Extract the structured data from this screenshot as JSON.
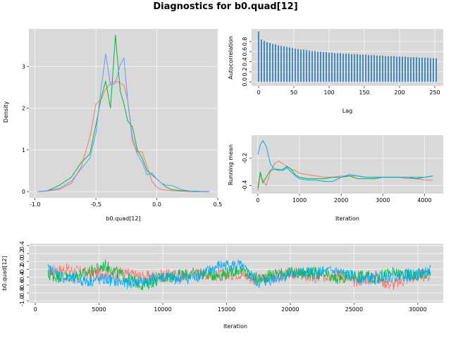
{
  "title": "Diagnostics for b0.quad[12]",
  "colors": {
    "chain1": "#F8766D",
    "chain2": "#00BA38",
    "chain3": "#619CFF",
    "trace3": "#00A9FF",
    "acf": "#1F77B4",
    "panel_bg": "#D9D9D9",
    "grid": "#F2F2F2"
  },
  "chart_data": [
    {
      "type": "line",
      "panel": "density",
      "xlabel": "b0.quad[12]",
      "ylabel": "Density",
      "xlim": [
        -1.05,
        0.5
      ],
      "ylim": [
        -0.15,
        3.9
      ],
      "xticks": [
        -1.0,
        -0.5,
        0.0,
        0.5
      ],
      "xtick_labels": [
        "-1.0",
        "-0.5",
        "0.0",
        "0.5"
      ],
      "yticks": [
        0,
        1,
        2,
        3
      ],
      "ytick_labels": [
        "0",
        "1",
        "2",
        "3"
      ],
      "x": [
        -0.98,
        -0.9,
        -0.8,
        -0.7,
        -0.62,
        -0.55,
        -0.5,
        -0.46,
        -0.42,
        -0.38,
        -0.34,
        -0.3,
        -0.27,
        -0.24,
        -0.2,
        -0.16,
        -0.12,
        -0.08,
        -0.04,
        0.0,
        0.04,
        0.08,
        0.12,
        0.2,
        0.3,
        0.43
      ],
      "series": [
        {
          "values": [
            0,
            0.01,
            0.05,
            0.2,
            0.6,
            1.3,
            2.1,
            2.2,
            2.45,
            2.6,
            2.65,
            2.6,
            2.55,
            2.2,
            1.3,
            0.95,
            0.95,
            0.6,
            0.25,
            0.1,
            0.05,
            0.03,
            0.02,
            0.01,
            0,
            0
          ]
        },
        {
          "values": [
            0,
            0.02,
            0.15,
            0.35,
            0.7,
            0.9,
            1.6,
            2.2,
            2.65,
            2.0,
            3.75,
            2.4,
            2.1,
            1.7,
            1.55,
            1.0,
            0.8,
            0.5,
            0.4,
            0.3,
            0.2,
            0.1,
            0.05,
            0.02,
            0.01,
            0
          ]
        },
        {
          "values": [
            0,
            0.02,
            0.08,
            0.25,
            0.55,
            0.8,
            1.4,
            2.4,
            3.3,
            2.55,
            2.6,
            3.05,
            3.2,
            2.2,
            1.2,
            0.9,
            0.7,
            0.4,
            0.45,
            0.3,
            0.2,
            0.15,
            0.15,
            0.05,
            0,
            0
          ]
        }
      ]
    },
    {
      "type": "bar",
      "panel": "autocorrelation",
      "xlabel": "Lag",
      "ylabel": "Autocorrelation",
      "xlim": [
        -10,
        262
      ],
      "ylim": [
        -0.08,
        1.05
      ],
      "xticks": [
        0,
        50,
        100,
        150,
        200,
        250
      ],
      "xtick_labels": [
        "0",
        "50",
        "100",
        "150",
        "200",
        "250"
      ],
      "yticks": [
        0.0,
        0.2,
        0.4,
        0.6,
        0.8
      ],
      "ytick_labels": [
        "0.0",
        "0.2",
        "0.4",
        "0.6",
        "0.8"
      ],
      "lags": [
        0,
        4,
        8,
        12,
        16,
        20,
        24,
        28,
        32,
        36,
        40,
        44,
        48,
        52,
        56,
        60,
        64,
        68,
        72,
        76,
        80,
        84,
        88,
        92,
        96,
        100,
        104,
        108,
        112,
        116,
        120,
        124,
        128,
        132,
        136,
        140,
        144,
        148,
        152,
        156,
        160,
        164,
        168,
        172,
        176,
        180,
        184,
        188,
        192,
        196,
        200,
        204,
        208,
        212,
        216,
        220,
        224,
        228,
        232,
        236,
        240,
        244,
        248,
        252
      ],
      "values": [
        1.0,
        0.84,
        0.81,
        0.79,
        0.77,
        0.75,
        0.74,
        0.72,
        0.71,
        0.7,
        0.69,
        0.68,
        0.67,
        0.66,
        0.65,
        0.64,
        0.64,
        0.63,
        0.62,
        0.61,
        0.61,
        0.6,
        0.6,
        0.59,
        0.59,
        0.58,
        0.58,
        0.57,
        0.57,
        0.57,
        0.56,
        0.56,
        0.56,
        0.55,
        0.55,
        0.55,
        0.54,
        0.54,
        0.54,
        0.53,
        0.53,
        0.53,
        0.52,
        0.52,
        0.52,
        0.51,
        0.51,
        0.51,
        0.51,
        0.5,
        0.5,
        0.5,
        0.5,
        0.49,
        0.49,
        0.49,
        0.49,
        0.48,
        0.48,
        0.48,
        0.48,
        0.47,
        0.47,
        0.47
      ]
    },
    {
      "type": "line",
      "panel": "running-mean",
      "xlabel": "Iteration",
      "ylabel": "Running mean",
      "xlim": [
        -150,
        4450
      ],
      "ylim": [
        -0.46,
        -0.03
      ],
      "xticks": [
        0,
        1000,
        2000,
        3000,
        4000
      ],
      "xtick_labels": [
        "0",
        "1000",
        "2000",
        "3000",
        "4000"
      ],
      "yticks": [
        -0.2,
        -0.4
      ],
      "ytick_labels": [
        "-0.2",
        "-0.4"
      ],
      "x": [
        0,
        60,
        120,
        200,
        300,
        400,
        500,
        600,
        700,
        800,
        900,
        1000,
        1200,
        1400,
        1600,
        1800,
        2000,
        2200,
        2400,
        2600,
        2800,
        3000,
        3200,
        3400,
        3600,
        3800,
        4000,
        4200
      ],
      "series": [
        {
          "values": [
            -0.44,
            -0.32,
            -0.36,
            -0.4,
            -0.3,
            -0.24,
            -0.22,
            -0.24,
            -0.26,
            -0.28,
            -0.29,
            -0.31,
            -0.32,
            -0.33,
            -0.34,
            -0.34,
            -0.33,
            -0.33,
            -0.33,
            -0.34,
            -0.34,
            -0.34,
            -0.34,
            -0.34,
            -0.35,
            -0.35,
            -0.36,
            -0.36
          ]
        },
        {
          "values": [
            -0.42,
            -0.3,
            -0.38,
            -0.34,
            -0.29,
            -0.28,
            -0.29,
            -0.28,
            -0.26,
            -0.28,
            -0.32,
            -0.34,
            -0.35,
            -0.35,
            -0.35,
            -0.34,
            -0.34,
            -0.33,
            -0.35,
            -0.35,
            -0.35,
            -0.34,
            -0.34,
            -0.34,
            -0.34,
            -0.35,
            -0.34,
            -0.33
          ]
        },
        {
          "values": [
            -0.17,
            -0.1,
            -0.07,
            -0.11,
            -0.24,
            -0.28,
            -0.28,
            -0.29,
            -0.27,
            -0.3,
            -0.33,
            -0.35,
            -0.36,
            -0.36,
            -0.37,
            -0.37,
            -0.34,
            -0.32,
            -0.33,
            -0.34,
            -0.34,
            -0.34,
            -0.34,
            -0.34,
            -0.34,
            -0.34,
            -0.34,
            -0.33
          ]
        }
      ]
    },
    {
      "type": "line",
      "panel": "trace",
      "xlabel": "Iteration",
      "ylabel": "b0.quad[12]",
      "xlim": [
        -500,
        32000
      ],
      "ylim": [
        -1.05,
        0.45
      ],
      "xticks": [
        0,
        5000,
        10000,
        15000,
        20000,
        25000,
        30000
      ],
      "xtick_labels": [
        "0",
        "5000",
        "10000",
        "15000",
        "20000",
        "25000",
        "30000"
      ],
      "yticks": [
        0.4,
        0.2,
        0.0,
        -0.2,
        -0.4,
        -0.6,
        -0.8,
        -1.0
      ],
      "ytick_labels": [
        "0.4",
        "0.2",
        "0.0",
        "-0.2",
        "-0.4",
        "-0.6",
        "-0.8",
        "-1.0"
      ],
      "x": [
        1000,
        2500,
        4000,
        5500,
        7000,
        8500,
        10000,
        11500,
        13000,
        14500,
        16000,
        17500,
        19000,
        20500,
        22000,
        23500,
        25000,
        26500,
        28000,
        29500,
        31000
      ],
      "series": [
        {
          "values": [
            -0.25,
            -0.2,
            -0.3,
            -0.3,
            -0.3,
            -0.4,
            -0.35,
            -0.35,
            -0.3,
            -0.35,
            -0.3,
            -0.5,
            -0.35,
            -0.3,
            -0.45,
            -0.3,
            -0.5,
            -0.4,
            -0.6,
            -0.4,
            -0.35
          ]
        },
        {
          "values": [
            -0.35,
            -0.4,
            -0.3,
            -0.1,
            -0.4,
            -0.6,
            -0.4,
            -0.35,
            -0.3,
            -0.35,
            -0.2,
            -0.45,
            -0.3,
            -0.3,
            -0.3,
            -0.45,
            -0.35,
            -0.4,
            -0.3,
            -0.35,
            -0.3
          ]
        },
        {
          "values": [
            -0.2,
            -0.45,
            -0.5,
            -0.45,
            -0.55,
            -0.5,
            -0.4,
            -0.45,
            -0.35,
            -0.1,
            -0.1,
            -0.55,
            -0.4,
            -0.3,
            -0.3,
            -0.25,
            -0.4,
            -0.45,
            -0.35,
            -0.35,
            -0.25
          ]
        }
      ]
    }
  ]
}
